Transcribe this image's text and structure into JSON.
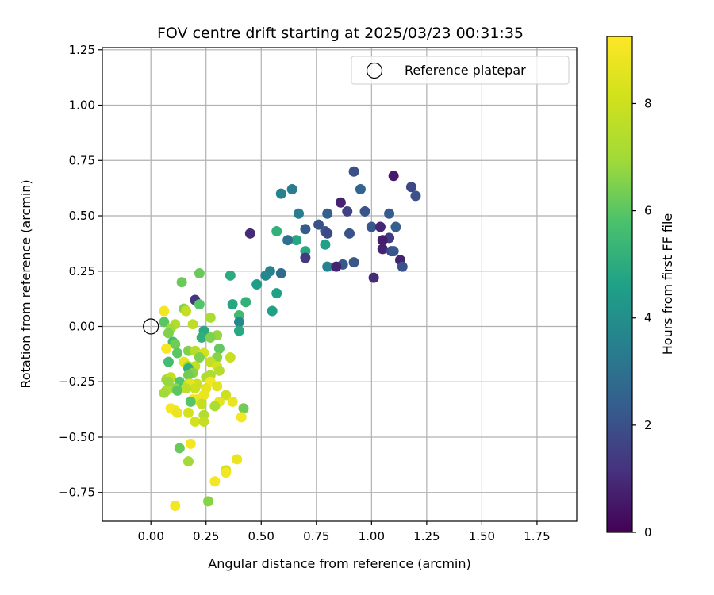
{
  "chart_data": {
    "type": "scatter",
    "title": "FOV centre drift starting at 2025/03/23 00:31:35",
    "xlabel": "Angular distance from reference (arcmin)",
    "ylabel": "Rotation from reference (arcmin)",
    "xlim": [
      -0.22,
      1.93
    ],
    "ylim": [
      -0.88,
      1.26
    ],
    "xticks": [
      0.0,
      0.25,
      0.5,
      0.75,
      1.0,
      1.25,
      1.5,
      1.75
    ],
    "xtick_labels": [
      "0.00",
      "0.25",
      "0.50",
      "0.75",
      "1.00",
      "1.25",
      "1.50",
      "1.75"
    ],
    "yticks": [
      -0.75,
      -0.5,
      -0.25,
      0.0,
      0.25,
      0.5,
      0.75,
      1.0,
      1.25
    ],
    "ytick_labels": [
      "−0.75",
      "−0.50",
      "−0.25",
      "0.00",
      "0.25",
      "0.50",
      "0.75",
      "1.00",
      "1.25"
    ],
    "grid": true,
    "legend": {
      "placement": "top-right",
      "entries": [
        "Reference platepar"
      ]
    },
    "reference_point": {
      "x": 0.0,
      "y": 0.0,
      "label": "Reference platepar"
    },
    "colorbar": {
      "label": "Hours from first FF file",
      "colormap": "viridis",
      "range": [
        0,
        9.25
      ],
      "ticks": [
        0,
        2,
        4,
        6,
        8
      ],
      "tick_labels": [
        "0",
        "2",
        "4",
        "6",
        "8"
      ]
    },
    "points": [
      {
        "x": 0.92,
        "y": 0.7,
        "h": 2.0
      },
      {
        "x": 1.1,
        "y": 0.68,
        "h": 0.6
      },
      {
        "x": 0.95,
        "y": 0.62,
        "h": 2.6
      },
      {
        "x": 1.18,
        "y": 0.63,
        "h": 1.8
      },
      {
        "x": 1.2,
        "y": 0.59,
        "h": 2.0
      },
      {
        "x": 0.64,
        "y": 0.62,
        "h": 3.4
      },
      {
        "x": 0.59,
        "y": 0.6,
        "h": 3.6
      },
      {
        "x": 0.86,
        "y": 0.56,
        "h": 0.8
      },
      {
        "x": 0.89,
        "y": 0.52,
        "h": 1.6
      },
      {
        "x": 0.97,
        "y": 0.52,
        "h": 2.1
      },
      {
        "x": 1.08,
        "y": 0.51,
        "h": 2.3
      },
      {
        "x": 0.67,
        "y": 0.51,
        "h": 3.4
      },
      {
        "x": 0.8,
        "y": 0.51,
        "h": 2.4
      },
      {
        "x": 0.76,
        "y": 0.46,
        "h": 2.0
      },
      {
        "x": 1.0,
        "y": 0.45,
        "h": 2.2
      },
      {
        "x": 1.04,
        "y": 0.45,
        "h": 0.9
      },
      {
        "x": 1.11,
        "y": 0.45,
        "h": 2.4
      },
      {
        "x": 0.7,
        "y": 0.44,
        "h": 2.3
      },
      {
        "x": 0.79,
        "y": 0.43,
        "h": 2.2
      },
      {
        "x": 0.57,
        "y": 0.43,
        "h": 5.2
      },
      {
        "x": 0.45,
        "y": 0.42,
        "h": 1.0
      },
      {
        "x": 0.8,
        "y": 0.42,
        "h": 1.8
      },
      {
        "x": 0.9,
        "y": 0.42,
        "h": 2.1
      },
      {
        "x": 1.08,
        "y": 0.4,
        "h": 1.4
      },
      {
        "x": 0.66,
        "y": 0.39,
        "h": 4.8
      },
      {
        "x": 0.62,
        "y": 0.39,
        "h": 3.0
      },
      {
        "x": 1.05,
        "y": 0.39,
        "h": 0.7
      },
      {
        "x": 0.79,
        "y": 0.37,
        "h": 4.6
      },
      {
        "x": 1.05,
        "y": 0.35,
        "h": 0.8
      },
      {
        "x": 1.09,
        "y": 0.34,
        "h": 1.7
      },
      {
        "x": 1.1,
        "y": 0.34,
        "h": 2.2
      },
      {
        "x": 0.7,
        "y": 0.34,
        "h": 4.9
      },
      {
        "x": 0.7,
        "y": 0.31,
        "h": 1.4
      },
      {
        "x": 1.13,
        "y": 0.3,
        "h": 0.8
      },
      {
        "x": 0.92,
        "y": 0.29,
        "h": 2.2
      },
      {
        "x": 0.87,
        "y": 0.28,
        "h": 2.2
      },
      {
        "x": 0.8,
        "y": 0.27,
        "h": 3.6
      },
      {
        "x": 0.84,
        "y": 0.27,
        "h": 0.8
      },
      {
        "x": 1.14,
        "y": 0.27,
        "h": 2.0
      },
      {
        "x": 0.54,
        "y": 0.25,
        "h": 3.6
      },
      {
        "x": 0.59,
        "y": 0.24,
        "h": 2.8
      },
      {
        "x": 0.52,
        "y": 0.23,
        "h": 3.7
      },
      {
        "x": 0.22,
        "y": 0.24,
        "h": 6.2
      },
      {
        "x": 0.36,
        "y": 0.23,
        "h": 5.0
      },
      {
        "x": 1.01,
        "y": 0.22,
        "h": 1.0
      },
      {
        "x": 0.14,
        "y": 0.2,
        "h": 6.2
      },
      {
        "x": 0.48,
        "y": 0.19,
        "h": 4.5
      },
      {
        "x": 0.57,
        "y": 0.15,
        "h": 4.6
      },
      {
        "x": 0.2,
        "y": 0.12,
        "h": 1.2
      },
      {
        "x": 0.43,
        "y": 0.11,
        "h": 5.2
      },
      {
        "x": 0.22,
        "y": 0.1,
        "h": 5.9
      },
      {
        "x": 0.37,
        "y": 0.1,
        "h": 4.8
      },
      {
        "x": 0.15,
        "y": 0.08,
        "h": 6.6
      },
      {
        "x": 0.55,
        "y": 0.07,
        "h": 4.6
      },
      {
        "x": 0.06,
        "y": 0.07,
        "h": 9.0
      },
      {
        "x": 0.16,
        "y": 0.07,
        "h": 7.8
      },
      {
        "x": 0.4,
        "y": 0.05,
        "h": 5.5
      },
      {
        "x": 0.27,
        "y": 0.04,
        "h": 7.2
      },
      {
        "x": 0.4,
        "y": 0.02,
        "h": 3.8
      },
      {
        "x": 0.06,
        "y": 0.02,
        "h": 6.0
      },
      {
        "x": 0.19,
        "y": 0.01,
        "h": 7.6
      },
      {
        "x": 0.11,
        "y": 0.01,
        "h": 7.4
      },
      {
        "x": 0.09,
        "y": -0.01,
        "h": 7.0
      },
      {
        "x": 0.24,
        "y": -0.02,
        "h": 4.9
      },
      {
        "x": 0.4,
        "y": -0.02,
        "h": 4.9
      },
      {
        "x": 0.08,
        "y": -0.03,
        "h": 6.5
      },
      {
        "x": 0.3,
        "y": -0.04,
        "h": 6.8
      },
      {
        "x": 0.23,
        "y": -0.05,
        "h": 5.1
      },
      {
        "x": 0.27,
        "y": -0.05,
        "h": 6.5
      },
      {
        "x": 0.1,
        "y": -0.07,
        "h": 5.6
      },
      {
        "x": 0.11,
        "y": -0.08,
        "h": 6.3
      },
      {
        "x": 0.07,
        "y": -0.1,
        "h": 9.0
      },
      {
        "x": 0.31,
        "y": -0.1,
        "h": 6.1
      },
      {
        "x": 0.17,
        "y": -0.11,
        "h": 6.5
      },
      {
        "x": 0.2,
        "y": -0.11,
        "h": 7.5
      },
      {
        "x": 0.24,
        "y": -0.12,
        "h": 8.2
      },
      {
        "x": 0.12,
        "y": -0.12,
        "h": 6.0
      },
      {
        "x": 0.22,
        "y": -0.14,
        "h": 6.5
      },
      {
        "x": 0.36,
        "y": -0.14,
        "h": 7.9
      },
      {
        "x": 0.3,
        "y": -0.14,
        "h": 6.6
      },
      {
        "x": 0.15,
        "y": -0.16,
        "h": 8.6
      },
      {
        "x": 0.08,
        "y": -0.16,
        "h": 5.6
      },
      {
        "x": 0.27,
        "y": -0.16,
        "h": 7.8
      },
      {
        "x": 0.17,
        "y": -0.18,
        "h": 6.8
      },
      {
        "x": 0.2,
        "y": -0.18,
        "h": 7.8
      },
      {
        "x": 0.3,
        "y": -0.18,
        "h": 8.2
      },
      {
        "x": 0.31,
        "y": -0.2,
        "h": 7.5
      },
      {
        "x": 0.17,
        "y": -0.19,
        "h": 5.1
      },
      {
        "x": 0.19,
        "y": -0.21,
        "h": 6.6
      },
      {
        "x": 0.17,
        "y": -0.22,
        "h": 6.3
      },
      {
        "x": 0.27,
        "y": -0.22,
        "h": 7.3
      },
      {
        "x": 0.07,
        "y": -0.24,
        "h": 7.0
      },
      {
        "x": 0.09,
        "y": -0.23,
        "h": 7.8
      },
      {
        "x": 0.25,
        "y": -0.23,
        "h": 7.3
      },
      {
        "x": 0.13,
        "y": -0.25,
        "h": 5.9
      },
      {
        "x": 0.27,
        "y": -0.25,
        "h": 9.0
      },
      {
        "x": 0.08,
        "y": -0.25,
        "h": 6.8
      },
      {
        "x": 0.17,
        "y": -0.26,
        "h": 7.8
      },
      {
        "x": 0.21,
        "y": -0.26,
        "h": 8.0
      },
      {
        "x": 0.18,
        "y": -0.26,
        "h": 8.6
      },
      {
        "x": 0.3,
        "y": -0.27,
        "h": 8.5
      },
      {
        "x": 0.2,
        "y": -0.28,
        "h": 8.0
      },
      {
        "x": 0.16,
        "y": -0.28,
        "h": 7.6
      },
      {
        "x": 0.11,
        "y": -0.28,
        "h": 6.8
      },
      {
        "x": 0.25,
        "y": -0.28,
        "h": 8.6
      },
      {
        "x": 0.07,
        "y": -0.29,
        "h": 7.4
      },
      {
        "x": 0.12,
        "y": -0.29,
        "h": 6.0
      },
      {
        "x": 0.06,
        "y": -0.3,
        "h": 7.0
      },
      {
        "x": 0.24,
        "y": -0.31,
        "h": 8.8
      },
      {
        "x": 0.34,
        "y": -0.31,
        "h": 8.0
      },
      {
        "x": 0.19,
        "y": -0.33,
        "h": 9.0
      },
      {
        "x": 0.21,
        "y": -0.33,
        "h": 8.8
      },
      {
        "x": 0.18,
        "y": -0.34,
        "h": 5.9
      },
      {
        "x": 0.31,
        "y": -0.34,
        "h": 8.6
      },
      {
        "x": 0.23,
        "y": -0.35,
        "h": 7.8
      },
      {
        "x": 0.37,
        "y": -0.34,
        "h": 8.8
      },
      {
        "x": 0.29,
        "y": -0.36,
        "h": 7.2
      },
      {
        "x": 0.42,
        "y": -0.37,
        "h": 6.3
      },
      {
        "x": 0.09,
        "y": -0.37,
        "h": 9.0
      },
      {
        "x": 0.11,
        "y": -0.38,
        "h": 9.0
      },
      {
        "x": 0.12,
        "y": -0.39,
        "h": 8.8
      },
      {
        "x": 0.17,
        "y": -0.39,
        "h": 8.2
      },
      {
        "x": 0.24,
        "y": -0.4,
        "h": 7.4
      },
      {
        "x": 0.41,
        "y": -0.41,
        "h": 9.0
      },
      {
        "x": 0.2,
        "y": -0.43,
        "h": 8.2
      },
      {
        "x": 0.24,
        "y": -0.43,
        "h": 7.8
      },
      {
        "x": 0.18,
        "y": -0.53,
        "h": 9.0
      },
      {
        "x": 0.13,
        "y": -0.55,
        "h": 6.2
      },
      {
        "x": 0.17,
        "y": -0.61,
        "h": 7.0
      },
      {
        "x": 0.39,
        "y": -0.6,
        "h": 8.8
      },
      {
        "x": 0.34,
        "y": -0.65,
        "h": 8.0
      },
      {
        "x": 0.34,
        "y": -0.66,
        "h": 9.0
      },
      {
        "x": 0.29,
        "y": -0.7,
        "h": 9.0
      },
      {
        "x": 0.26,
        "y": -0.79,
        "h": 6.6
      },
      {
        "x": 0.11,
        "y": -0.81,
        "h": 9.0
      }
    ]
  }
}
